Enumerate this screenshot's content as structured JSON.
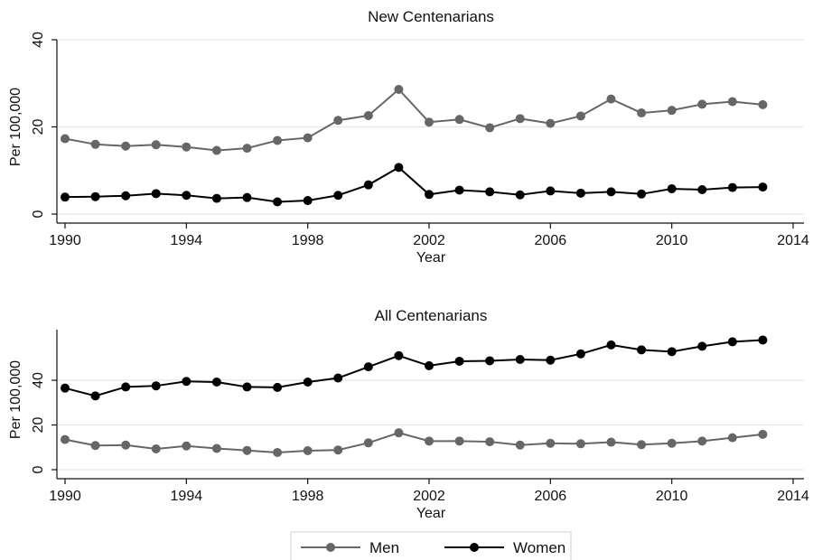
{
  "chart_data": [
    {
      "type": "line",
      "title": "New Centenarians",
      "xlabel": "Year",
      "ylabel": "Per 100,000",
      "xlim": [
        1990,
        2014
      ],
      "ylim": [
        0,
        40
      ],
      "x_ticks": [
        "1990",
        "1994",
        "1998",
        "2002",
        "2006",
        "2010",
        "2014"
      ],
      "y_ticks": [
        "0",
        "20",
        "40"
      ],
      "grid": true,
      "x": [
        1990,
        1991,
        1992,
        1993,
        1994,
        1995,
        1996,
        1997,
        1998,
        1999,
        2000,
        2001,
        2002,
        2003,
        2004,
        2005,
        2006,
        2007,
        2008,
        2009,
        2010,
        2011,
        2012,
        2013
      ],
      "series": [
        {
          "name": "Men",
          "color": "#666666",
          "values": [
            17.3,
            16.0,
            15.6,
            15.9,
            15.4,
            14.6,
            15.1,
            16.9,
            17.5,
            21.5,
            22.6,
            28.6,
            21.1,
            21.7,
            19.8,
            21.9,
            20.8,
            22.5,
            26.4,
            23.2,
            23.8,
            25.2,
            25.8,
            25.1
          ]
        },
        {
          "name": "Women",
          "color": "#000000",
          "values": [
            3.9,
            4.0,
            4.2,
            4.7,
            4.3,
            3.6,
            3.8,
            2.8,
            3.1,
            4.3,
            6.7,
            10.7,
            4.5,
            5.5,
            5.1,
            4.4,
            5.3,
            4.8,
            5.1,
            4.6,
            5.8,
            5.6,
            6.1,
            6.2
          ]
        }
      ]
    },
    {
      "type": "line",
      "title": "All Centenarians",
      "xlabel": "Year",
      "ylabel": "Per 100,000",
      "xlim": [
        1990,
        2014
      ],
      "ylim": [
        0,
        60
      ],
      "x_ticks": [
        "1990",
        "1994",
        "1998",
        "2002",
        "2006",
        "2010",
        "2014"
      ],
      "y_ticks": [
        "0",
        "20",
        "40"
      ],
      "grid": true,
      "x": [
        1990,
        1991,
        1992,
        1993,
        1994,
        1995,
        1996,
        1997,
        1998,
        1999,
        2000,
        2001,
        2002,
        2003,
        2004,
        2005,
        2006,
        2007,
        2008,
        2009,
        2010,
        2011,
        2012,
        2013
      ],
      "series": [
        {
          "name": "Men",
          "color": "#666666",
          "values": [
            13.5,
            10.8,
            11.0,
            9.3,
            10.6,
            9.5,
            8.6,
            7.7,
            8.5,
            8.8,
            12.0,
            16.5,
            12.8,
            12.8,
            12.5,
            11.0,
            11.8,
            11.6,
            12.3,
            11.2,
            11.8,
            12.8,
            14.3,
            15.8
          ]
        },
        {
          "name": "Women",
          "color": "#000000",
          "values": [
            36.5,
            33.0,
            37.0,
            37.5,
            39.5,
            39.2,
            37.0,
            36.8,
            39.2,
            41.0,
            46.0,
            51.0,
            46.5,
            48.5,
            48.7,
            49.3,
            49.0,
            51.8,
            55.8,
            53.6,
            52.8,
            55.2,
            57.2,
            58.0
          ]
        }
      ]
    }
  ],
  "legend": {
    "position": "bottom-center",
    "entries": [
      {
        "label": "Men",
        "color": "#666666"
      },
      {
        "label": "Women",
        "color": "#000000"
      }
    ]
  }
}
